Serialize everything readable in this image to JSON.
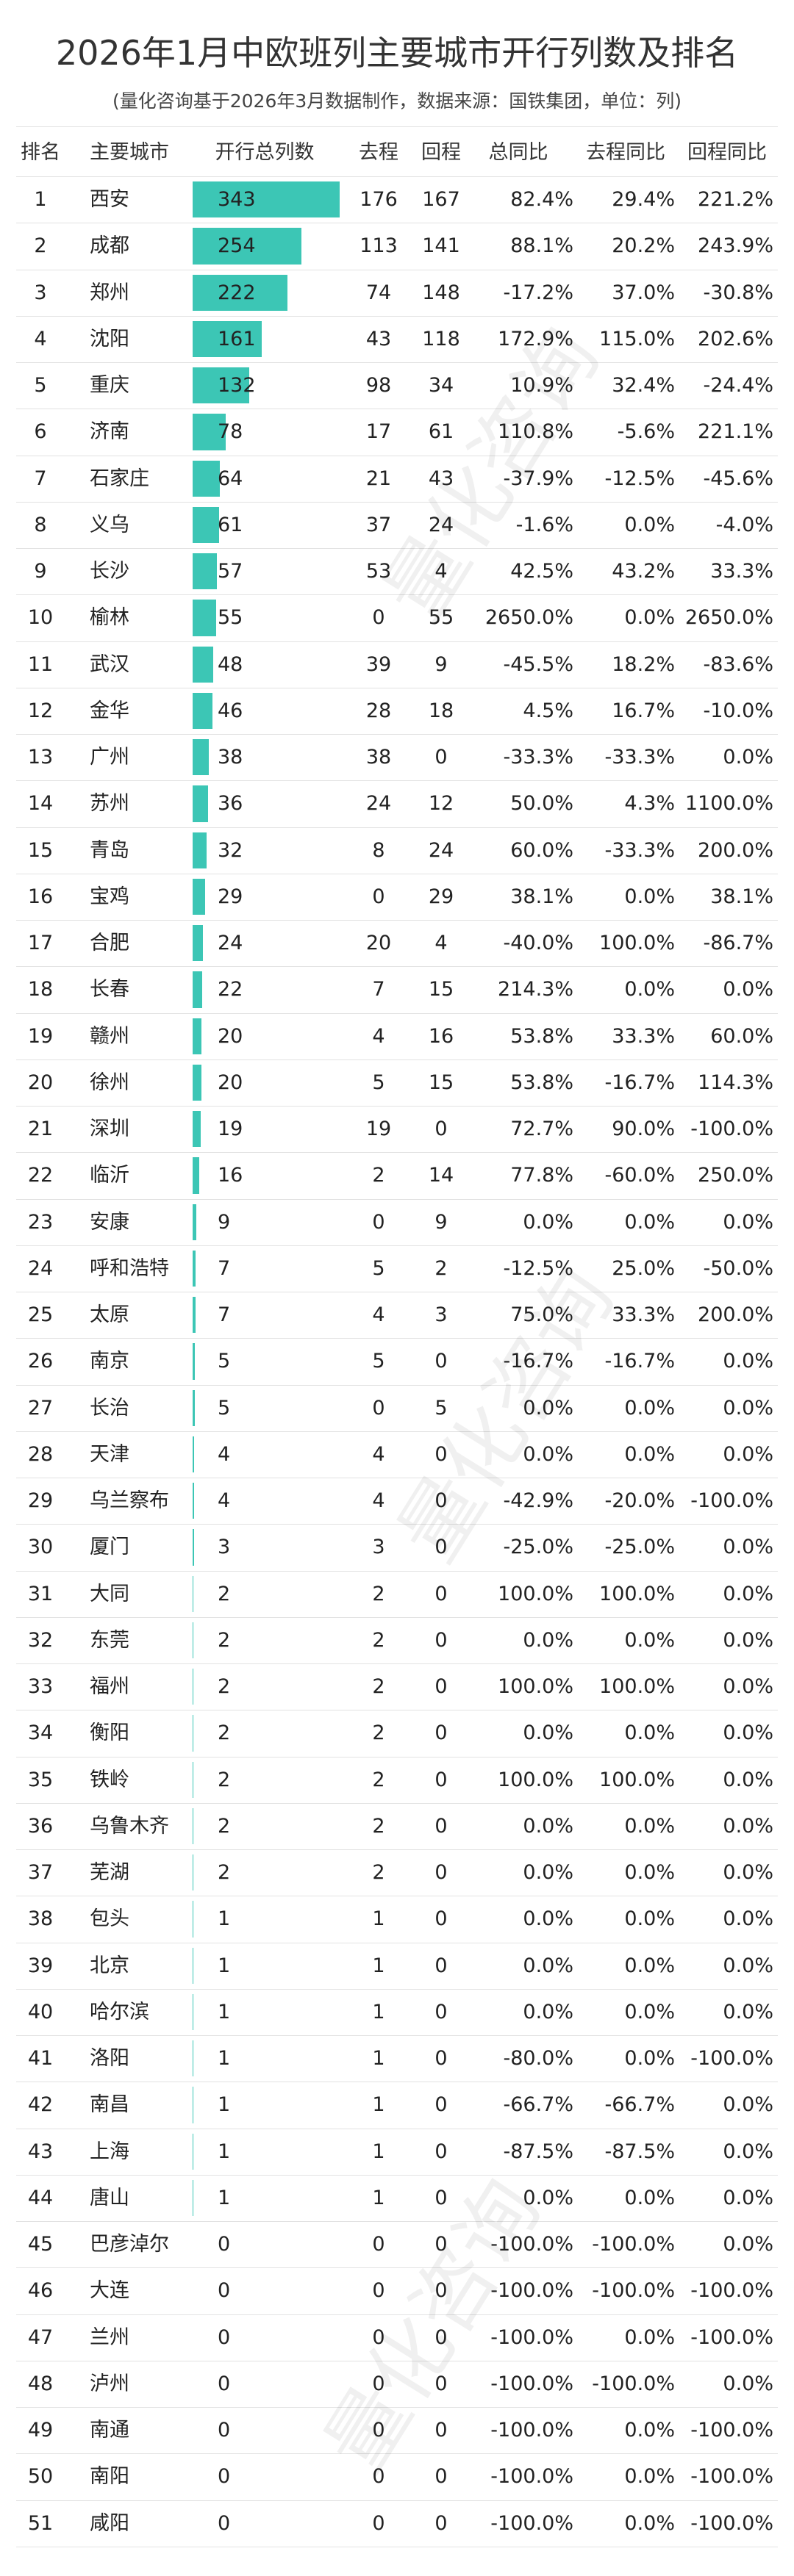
{
  "header": {
    "title": "2026年1月中欧班列主要城市开行列数及排名",
    "subtitle": "(量化咨询基于2026年3月数据制作，数据来源：国铁集团，单位：列)"
  },
  "watermark": "量化咨询",
  "table": {
    "columns": [
      "排名",
      "主要城市",
      "开行总列数",
      "去程",
      "回程",
      "总同比",
      "去程同比",
      "回程同比"
    ],
    "rows": [
      [
        1,
        "西安",
        343,
        176,
        167,
        "82.4%",
        "29.4%",
        "221.2%"
      ],
      [
        2,
        "成都",
        254,
        113,
        141,
        "88.1%",
        "20.2%",
        "243.9%"
      ],
      [
        3,
        "郑州",
        222,
        74,
        148,
        "-17.2%",
        "37.0%",
        "-30.8%"
      ],
      [
        4,
        "沈阳",
        161,
        43,
        118,
        "172.9%",
        "115.0%",
        "202.6%"
      ],
      [
        5,
        "重庆",
        132,
        98,
        34,
        "10.9%",
        "32.4%",
        "-24.4%"
      ],
      [
        6,
        "济南",
        78,
        17,
        61,
        "110.8%",
        "-5.6%",
        "221.1%"
      ],
      [
        7,
        "石家庄",
        64,
        21,
        43,
        "-37.9%",
        "-12.5%",
        "-45.6%"
      ],
      [
        8,
        "义乌",
        61,
        37,
        24,
        "-1.6%",
        "0.0%",
        "-4.0%"
      ],
      [
        9,
        "长沙",
        57,
        53,
        4,
        "42.5%",
        "43.2%",
        "33.3%"
      ],
      [
        10,
        "榆林",
        55,
        0,
        55,
        "2650.0%",
        "0.0%",
        "2650.0%"
      ],
      [
        11,
        "武汉",
        48,
        39,
        9,
        "-45.5%",
        "18.2%",
        "-83.6%"
      ],
      [
        12,
        "金华",
        46,
        28,
        18,
        "4.5%",
        "16.7%",
        "-10.0%"
      ],
      [
        13,
        "广州",
        38,
        38,
        0,
        "-33.3%",
        "-33.3%",
        "0.0%"
      ],
      [
        14,
        "苏州",
        36,
        24,
        12,
        "50.0%",
        "4.3%",
        "1100.0%"
      ],
      [
        15,
        "青岛",
        32,
        8,
        24,
        "60.0%",
        "-33.3%",
        "200.0%"
      ],
      [
        16,
        "宝鸡",
        29,
        0,
        29,
        "38.1%",
        "0.0%",
        "38.1%"
      ],
      [
        17,
        "合肥",
        24,
        20,
        4,
        "-40.0%",
        "100.0%",
        "-86.7%"
      ],
      [
        18,
        "长春",
        22,
        7,
        15,
        "214.3%",
        "0.0%",
        "0.0%"
      ],
      [
        19,
        "赣州",
        20,
        4,
        16,
        "53.8%",
        "33.3%",
        "60.0%"
      ],
      [
        20,
        "徐州",
        20,
        5,
        15,
        "53.8%",
        "-16.7%",
        "114.3%"
      ],
      [
        21,
        "深圳",
        19,
        19,
        0,
        "72.7%",
        "90.0%",
        "-100.0%"
      ],
      [
        22,
        "临沂",
        16,
        2,
        14,
        "77.8%",
        "-60.0%",
        "250.0%"
      ],
      [
        23,
        "安康",
        9,
        0,
        9,
        "0.0%",
        "0.0%",
        "0.0%"
      ],
      [
        24,
        "呼和浩特",
        7,
        5,
        2,
        "-12.5%",
        "25.0%",
        "-50.0%"
      ],
      [
        25,
        "太原",
        7,
        4,
        3,
        "75.0%",
        "33.3%",
        "200.0%"
      ],
      [
        26,
        "南京",
        5,
        5,
        0,
        "-16.7%",
        "-16.7%",
        "0.0%"
      ],
      [
        27,
        "长治",
        5,
        0,
        5,
        "0.0%",
        "0.0%",
        "0.0%"
      ],
      [
        28,
        "天津",
        4,
        4,
        0,
        "0.0%",
        "0.0%",
        "0.0%"
      ],
      [
        29,
        "乌兰察布",
        4,
        4,
        0,
        "-42.9%",
        "-20.0%",
        "-100.0%"
      ],
      [
        30,
        "厦门",
        3,
        3,
        0,
        "-25.0%",
        "-25.0%",
        "0.0%"
      ],
      [
        31,
        "大同",
        2,
        2,
        0,
        "100.0%",
        "100.0%",
        "0.0%"
      ],
      [
        32,
        "东莞",
        2,
        2,
        0,
        "0.0%",
        "0.0%",
        "0.0%"
      ],
      [
        33,
        "福州",
        2,
        2,
        0,
        "100.0%",
        "100.0%",
        "0.0%"
      ],
      [
        34,
        "衡阳",
        2,
        2,
        0,
        "0.0%",
        "0.0%",
        "0.0%"
      ],
      [
        35,
        "铁岭",
        2,
        2,
        0,
        "100.0%",
        "100.0%",
        "0.0%"
      ],
      [
        36,
        "乌鲁木齐",
        2,
        2,
        0,
        "0.0%",
        "0.0%",
        "0.0%"
      ],
      [
        37,
        "芜湖",
        2,
        2,
        0,
        "0.0%",
        "0.0%",
        "0.0%"
      ],
      [
        38,
        "包头",
        1,
        1,
        0,
        "0.0%",
        "0.0%",
        "0.0%"
      ],
      [
        39,
        "北京",
        1,
        1,
        0,
        "0.0%",
        "0.0%",
        "0.0%"
      ],
      [
        40,
        "哈尔滨",
        1,
        1,
        0,
        "0.0%",
        "0.0%",
        "0.0%"
      ],
      [
        41,
        "洛阳",
        1,
        1,
        0,
        "-80.0%",
        "0.0%",
        "-100.0%"
      ],
      [
        42,
        "南昌",
        1,
        1,
        0,
        "-66.7%",
        "-66.7%",
        "0.0%"
      ],
      [
        43,
        "上海",
        1,
        1,
        0,
        "-87.5%",
        "-87.5%",
        "0.0%"
      ],
      [
        44,
        "唐山",
        1,
        1,
        0,
        "0.0%",
        "0.0%",
        "0.0%"
      ],
      [
        45,
        "巴彦淖尔",
        0,
        0,
        0,
        "-100.0%",
        "-100.0%",
        "0.0%"
      ],
      [
        46,
        "大连",
        0,
        0,
        0,
        "-100.0%",
        "-100.0%",
        "-100.0%"
      ],
      [
        47,
        "兰州",
        0,
        0,
        0,
        "-100.0%",
        "0.0%",
        "-100.0%"
      ],
      [
        48,
        "泸州",
        0,
        0,
        0,
        "-100.0%",
        "-100.0%",
        "0.0%"
      ],
      [
        49,
        "南通",
        0,
        0,
        0,
        "-100.0%",
        "0.0%",
        "-100.0%"
      ],
      [
        50,
        "南阳",
        0,
        0,
        0,
        "-100.0%",
        "0.0%",
        "-100.0%"
      ],
      [
        51,
        "咸阳",
        0,
        0,
        0,
        "-100.0%",
        "0.0%",
        "-100.0%"
      ]
    ]
  }
}
